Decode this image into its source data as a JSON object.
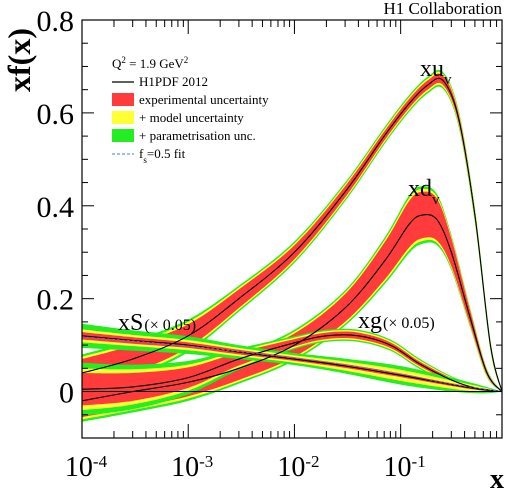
{
  "chart_data": {
    "type": "line",
    "collaboration": "H1 Collaboration",
    "xlabel": "x",
    "ylabel": "xf(x)",
    "xscale": "log",
    "xlim": [
      0.0001,
      0.9
    ],
    "ylim": [
      -0.1,
      0.8
    ],
    "y_ticks": [
      "0",
      "0.2",
      "0.4",
      "0.6",
      "0.8"
    ],
    "x_ticks": [
      {
        "base": "10",
        "exp": "-4"
      },
      {
        "base": "10",
        "exp": "-3"
      },
      {
        "base": "10",
        "exp": "-2"
      },
      {
        "base": "10",
        "exp": "-1"
      }
    ],
    "legend": {
      "header": {
        "prefix": "Q",
        "sup": "2",
        "mid": " = 1.9 GeV",
        "sup2": "2"
      },
      "entries": [
        {
          "kind": "line",
          "color": "#000000",
          "label": "H1PDF 2012"
        },
        {
          "kind": "box",
          "color": "#ff3b3b",
          "label": "experimental uncertainty"
        },
        {
          "kind": "box",
          "color": "#ffff33",
          "label": "+ model uncertainty"
        },
        {
          "kind": "box",
          "color": "#22ee22",
          "label": "+ parametrisation unc."
        },
        {
          "kind": "dash",
          "color": "#4477ff",
          "label_main": "f",
          "label_sub": "s",
          "label_rest": "=0.5 fit"
        }
      ]
    },
    "band_colors": {
      "experimental": "#ff3b3b",
      "model": "#ffff33",
      "parametrisation": "#22ee22"
    },
    "series": [
      {
        "name": "xu_v",
        "label_main": "xu",
        "label_sub": "v",
        "label_suffix": "",
        "x": [
          0.0001,
          0.0003,
          0.001,
          0.003,
          0.01,
          0.03,
          0.07,
          0.12,
          0.18,
          0.25,
          0.35,
          0.5,
          0.7,
          0.9
        ],
        "y": [
          0.04,
          0.07,
          0.12,
          0.2,
          0.3,
          0.43,
          0.55,
          0.62,
          0.66,
          0.67,
          0.59,
          0.38,
          0.1,
          0.0
        ],
        "exp": [
          0.03,
          0.03,
          0.025,
          0.02,
          0.015,
          0.012,
          0.01,
          0.01,
          0.01,
          0.01,
          0.01,
          0.008,
          0.005,
          0.0
        ],
        "mod": [
          0.005,
          0.005,
          0.005,
          0.004,
          0.004,
          0.004,
          0.004,
          0.004,
          0.004,
          0.004,
          0.004,
          0.004,
          0.003,
          0.0
        ],
        "par": [
          0.005,
          0.005,
          0.005,
          0.004,
          0.004,
          0.004,
          0.004,
          0.004,
          0.004,
          0.004,
          0.004,
          0.004,
          0.003,
          0.0
        ]
      },
      {
        "name": "xd_v",
        "label_main": "xd",
        "label_sub": "v",
        "label_suffix": "",
        "x": [
          0.0001,
          0.0003,
          0.001,
          0.003,
          0.01,
          0.03,
          0.07,
          0.12,
          0.16,
          0.22,
          0.3,
          0.45,
          0.65,
          0.9
        ],
        "y": [
          -0.02,
          0.0,
          0.02,
          0.05,
          0.1,
          0.18,
          0.28,
          0.36,
          0.38,
          0.37,
          0.3,
          0.16,
          0.04,
          0.0
        ],
        "exp": [
          0.035,
          0.035,
          0.03,
          0.025,
          0.025,
          0.03,
          0.04,
          0.05,
          0.05,
          0.045,
          0.03,
          0.015,
          0.005,
          0.0
        ],
        "mod": [
          0.005,
          0.005,
          0.005,
          0.004,
          0.004,
          0.004,
          0.005,
          0.006,
          0.006,
          0.005,
          0.004,
          0.003,
          0.002,
          0.0
        ],
        "par": [
          0.005,
          0.005,
          0.005,
          0.004,
          0.004,
          0.004,
          0.005,
          0.006,
          0.006,
          0.005,
          0.004,
          0.003,
          0.002,
          0.0
        ]
      },
      {
        "name": "xg(x0.05)",
        "label_main": "xg",
        "label_sub": "",
        "label_suffix": "(× 0.05)",
        "x": [
          0.0001,
          0.0003,
          0.001,
          0.003,
          0.01,
          0.02,
          0.04,
          0.08,
          0.15,
          0.3,
          0.5,
          0.9
        ],
        "y": [
          0.005,
          0.01,
          0.03,
          0.07,
          0.105,
          0.12,
          0.12,
          0.1,
          0.06,
          0.025,
          0.008,
          0.0
        ],
        "exp": [
          0.035,
          0.03,
          0.022,
          0.014,
          0.008,
          0.007,
          0.007,
          0.006,
          0.005,
          0.004,
          0.003,
          0.0
        ],
        "mod": [
          0.01,
          0.008,
          0.006,
          0.004,
          0.003,
          0.003,
          0.003,
          0.003,
          0.003,
          0.002,
          0.002,
          0.0
        ],
        "par": [
          0.012,
          0.01,
          0.008,
          0.005,
          0.003,
          0.003,
          0.003,
          0.003,
          0.003,
          0.002,
          0.002,
          0.0
        ]
      },
      {
        "name": "xS(x0.05)",
        "label_main": "xS",
        "label_sub": "",
        "label_suffix": "(× 0.05)",
        "x": [
          0.0001,
          0.0003,
          0.001,
          0.003,
          0.01,
          0.03,
          0.1,
          0.3,
          0.6,
          0.9
        ],
        "y": [
          0.12,
          0.11,
          0.1,
          0.085,
          0.07,
          0.055,
          0.035,
          0.015,
          0.004,
          0.0
        ],
        "exp": [
          0.008,
          0.007,
          0.006,
          0.005,
          0.004,
          0.004,
          0.004,
          0.003,
          0.002,
          0.0
        ],
        "mod": [
          0.006,
          0.005,
          0.005,
          0.004,
          0.004,
          0.006,
          0.008,
          0.006,
          0.003,
          0.0
        ],
        "par": [
          0.012,
          0.01,
          0.008,
          0.006,
          0.005,
          0.006,
          0.008,
          0.006,
          0.003,
          0.0
        ]
      }
    ],
    "fs_fit": {
      "x": [
        0.0001,
        0.001,
        0.01,
        0.03,
        0.1,
        0.3,
        0.9
      ],
      "y": [
        0.118,
        0.098,
        0.072,
        0.058,
        0.038,
        0.016,
        0.0
      ]
    }
  }
}
